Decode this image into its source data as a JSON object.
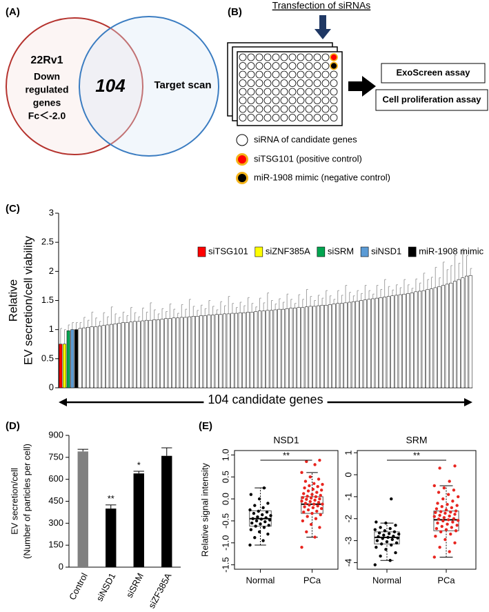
{
  "venn": {
    "label": "(A)",
    "left_title": "22Rv1",
    "left_lines": [
      "Down",
      "regulated",
      "genes",
      "Fc＜-2.0"
    ],
    "overlap": "104",
    "right_text": "Target scan"
  },
  "schematic": {
    "label": "(B)",
    "title": "Transfection of siRNAs",
    "assays": [
      "ExoScreen assay",
      "Cell proliferation assay"
    ],
    "legend": [
      "siRNA of candidate genes",
      "siTSG101 (positive control)",
      "miR-1908 mimic (negative control)"
    ]
  },
  "chart_data": [
    {
      "type": "bar",
      "label": "(C)",
      "ylabel": [
        "Relative",
        "EV secretion/cell viability"
      ],
      "xlabel": "104 candidate genes",
      "ylim": [
        0,
        3
      ],
      "yticks": [
        0,
        0.5,
        1,
        1.5,
        2,
        2.5,
        3
      ],
      "series": [
        {
          "name": "siTSG101",
          "color": "#ff0000",
          "values": [
            0.75
          ],
          "errors": [
            0.27
          ]
        },
        {
          "name": "siZNF385A",
          "color": "#ffff00",
          "values": [
            0.75
          ],
          "errors": [
            0.25
          ]
        },
        {
          "name": "siSRM",
          "color": "#00a550",
          "values": [
            0.98
          ],
          "errors": [
            0.1
          ]
        },
        {
          "name": "siNSD1",
          "color": "#5b9bd5",
          "values": [
            1.0
          ],
          "errors": [
            0.12
          ]
        },
        {
          "name": "miR-1908 mimic",
          "color": "#000000",
          "values": [
            1.0
          ],
          "errors": [
            0.12
          ]
        }
      ],
      "color": "#ffffff",
      "values": [
        1.02,
        1.03,
        1.04,
        1.05,
        1.05,
        1.06,
        1.07,
        1.08,
        1.09,
        1.1,
        1.11,
        1.12,
        1.12,
        1.13,
        1.14,
        1.14,
        1.15,
        1.16,
        1.16,
        1.17,
        1.17,
        1.18,
        1.19,
        1.19,
        1.2,
        1.2,
        1.21,
        1.21,
        1.22,
        1.23,
        1.23,
        1.24,
        1.24,
        1.25,
        1.25,
        1.26,
        1.26,
        1.27,
        1.27,
        1.28,
        1.28,
        1.29,
        1.29,
        1.3,
        1.3,
        1.31,
        1.32,
        1.32,
        1.33,
        1.33,
        1.34,
        1.35,
        1.35,
        1.36,
        1.37,
        1.37,
        1.38,
        1.38,
        1.39,
        1.4,
        1.4,
        1.41,
        1.42,
        1.42,
        1.43,
        1.44,
        1.45,
        1.45,
        1.46,
        1.47,
        1.48,
        1.49,
        1.5,
        1.51,
        1.52,
        1.53,
        1.54,
        1.55,
        1.56,
        1.57,
        1.58,
        1.59,
        1.6,
        1.61,
        1.62,
        1.63,
        1.65,
        1.66,
        1.67,
        1.69,
        1.7,
        1.72,
        1.74,
        1.76,
        1.78,
        1.8,
        1.83,
        1.86,
        1.89,
        1.92,
        1.93
      ],
      "errors": [
        0.1,
        0.18,
        0.12,
        0.25,
        0.15,
        0.08,
        0.22,
        0.14,
        0.3,
        0.17,
        0.1,
        0.18,
        0.12,
        0.25,
        0.15,
        0.08,
        0.22,
        0.14,
        0.3,
        0.17,
        0.1,
        0.18,
        0.12,
        0.25,
        0.15,
        0.08,
        0.22,
        0.14,
        0.3,
        0.17,
        0.1,
        0.18,
        0.12,
        0.25,
        0.15,
        0.08,
        0.22,
        0.14,
        0.3,
        0.17,
        0.1,
        0.18,
        0.12,
        0.25,
        0.15,
        0.08,
        0.22,
        0.14,
        0.3,
        0.17,
        0.1,
        0.18,
        0.12,
        0.25,
        0.15,
        0.08,
        0.22,
        0.14,
        0.3,
        0.17,
        0.1,
        0.18,
        0.12,
        0.25,
        0.15,
        0.08,
        0.22,
        0.14,
        0.3,
        0.17,
        0.1,
        0.18,
        0.12,
        0.25,
        0.15,
        0.08,
        0.22,
        0.14,
        0.3,
        0.17,
        0.1,
        0.18,
        0.12,
        0.25,
        0.15,
        0.08,
        0.22,
        0.14,
        0.3,
        0.17,
        0.2,
        0.35,
        0.15,
        0.4,
        0.25,
        0.3,
        0.45,
        0.28,
        0.5,
        0.35,
        0.12
      ]
    },
    {
      "type": "bar",
      "label": "(D)",
      "ylabel": [
        "EV secretion/cell",
        "(Number of particles per cell)"
      ],
      "ylim": [
        0,
        900
      ],
      "yticks": [
        0,
        150,
        300,
        450,
        600,
        750,
        900
      ],
      "categories": [
        "Control",
        "siNSD1",
        "siSRM",
        "siZF385A"
      ],
      "values": [
        790,
        400,
        640,
        760
      ],
      "errors": [
        15,
        25,
        15,
        55
      ],
      "colors": [
        "#808080",
        "#000000",
        "#000000",
        "#000000"
      ],
      "annotations": [
        null,
        "**",
        "*",
        null
      ]
    },
    {
      "type": "box",
      "label": "(E)",
      "title": "NSD1",
      "ylabel": "Relative signal intensity",
      "significance": "**",
      "ylim": [
        -1.6,
        1.1
      ],
      "yticks": [
        -1.5,
        {
          "value": -1,
          "label": "-1.0"
        },
        -0.5,
        {
          "value": 0,
          "label": "0.0"
        },
        0.5,
        {
          "value": 1,
          "label": "1.0"
        }
      ],
      "categories": [
        "Normal",
        "PCa"
      ],
      "point_colors": [
        "#000000",
        "#e8251f"
      ],
      "boxes": [
        {
          "whislo": -1.05,
          "q1": -0.62,
          "med": -0.45,
          "q3": -0.27,
          "whishi": 0.25
        },
        {
          "whislo": -0.87,
          "q1": -0.33,
          "med": -0.12,
          "q3": 0.05,
          "whishi": 0.6
        }
      ],
      "points": [
        [
          -1.05,
          -0.95,
          -0.88,
          -0.8,
          -0.75,
          -0.7,
          -0.65,
          -0.62,
          -0.6,
          -0.57,
          -0.55,
          -0.52,
          -0.5,
          -0.48,
          -0.46,
          -0.45,
          -0.43,
          -0.41,
          -0.38,
          -0.36,
          -0.33,
          -0.3,
          -0.28,
          -0.25,
          -0.2,
          -0.15,
          -0.1,
          0.0,
          0.1,
          0.25
        ],
        [
          -1.1,
          -0.87,
          -0.75,
          -0.65,
          -0.58,
          -0.5,
          -0.45,
          -0.4,
          -0.36,
          -0.33,
          -0.3,
          -0.28,
          -0.25,
          -0.22,
          -0.2,
          -0.18,
          -0.16,
          -0.14,
          -0.12,
          -0.12,
          -0.1,
          -0.08,
          -0.06,
          -0.05,
          -0.03,
          -0.01,
          0.0,
          0.02,
          0.03,
          0.05,
          0.06,
          0.08,
          0.1,
          0.12,
          0.15,
          0.18,
          0.2,
          0.22,
          0.25,
          0.28,
          0.3,
          0.33,
          0.35,
          0.4,
          0.45,
          0.5,
          0.6,
          0.78,
          0.85,
          0.88
        ]
      ]
    },
    {
      "type": "box",
      "title": "SRM",
      "significance": "**",
      "ylim": [
        -4.3,
        1.1
      ],
      "yticks": [
        -4,
        -3,
        -2,
        -1,
        0,
        1
      ],
      "categories": [
        "Normal",
        "PCa"
      ],
      "point_colors": [
        "#000000",
        "#e8251f"
      ],
      "boxes": [
        {
          "whislo": -3.9,
          "q1": -3.15,
          "med": -2.85,
          "q3": -2.6,
          "whishi": -2.2
        },
        {
          "whislo": -3.75,
          "q1": -2.55,
          "med": -2.05,
          "q3": -1.65,
          "whishi": -0.5
        }
      ],
      "points": [
        [
          -4.1,
          -3.9,
          -3.7,
          -3.55,
          -3.4,
          -3.3,
          -3.2,
          -3.15,
          -3.1,
          -3.05,
          -3.0,
          -2.95,
          -2.9,
          -2.88,
          -2.85,
          -2.82,
          -2.8,
          -2.75,
          -2.7,
          -2.68,
          -2.65,
          -2.6,
          -2.55,
          -2.5,
          -2.45,
          -2.4,
          -2.3,
          -2.2,
          -2.15,
          -1.1
        ],
        [
          -3.75,
          -3.5,
          -3.3,
          -3.1,
          -2.95,
          -2.8,
          -2.7,
          -2.6,
          -2.55,
          -2.5,
          -2.45,
          -2.4,
          -2.35,
          -2.3,
          -2.25,
          -2.2,
          -2.15,
          -2.1,
          -2.08,
          -2.05,
          -2.02,
          -2.0,
          -1.95,
          -1.9,
          -1.88,
          -1.85,
          -1.8,
          -1.75,
          -1.72,
          -1.7,
          -1.68,
          -1.65,
          -1.6,
          -1.55,
          -1.5,
          -1.45,
          -1.4,
          -1.35,
          -1.3,
          -1.2,
          -1.1,
          -1.0,
          -0.9,
          -0.8,
          -0.7,
          -0.6,
          -0.5,
          -0.3,
          0.3,
          0.4
        ]
      ]
    }
  ]
}
